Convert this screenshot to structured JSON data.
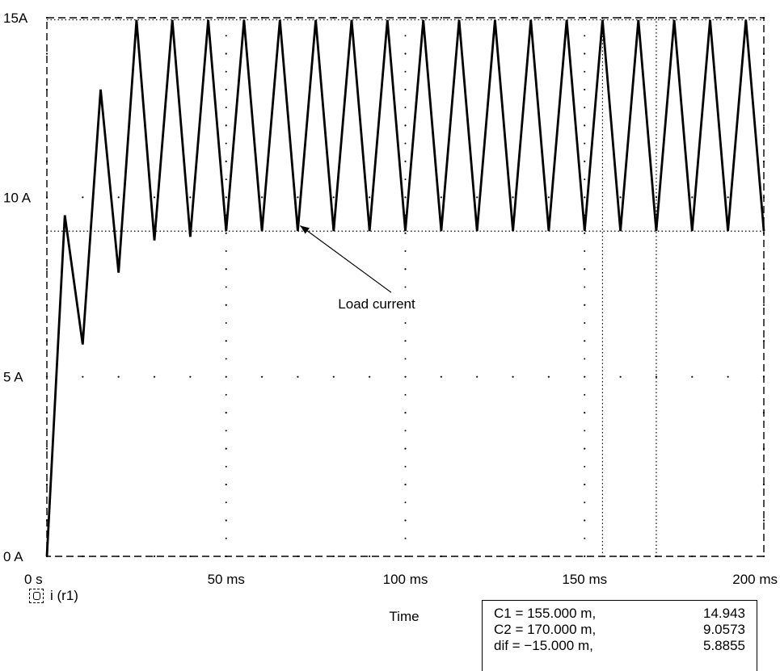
{
  "chart_data": {
    "type": "line",
    "xlabel": "Time",
    "ylabel": "",
    "xlim": [
      0,
      200
    ],
    "ylim": [
      0,
      15
    ],
    "x_ticks": [
      {
        "value": 0,
        "label": "0 s"
      },
      {
        "value": 50,
        "label": "50 ms"
      },
      {
        "value": 100,
        "label": "100 ms"
      },
      {
        "value": 150,
        "label": "150 ms"
      },
      {
        "value": 200,
        "label": "200 ms"
      }
    ],
    "y_ticks": [
      {
        "value": 0,
        "label": "0 A"
      },
      {
        "value": 5,
        "label": "5 A"
      },
      {
        "value": 10,
        "label": "10 A"
      },
      {
        "value": 15,
        "label": "15A"
      }
    ],
    "grid": "dotted",
    "series": [
      {
        "name": "i (r1)",
        "x_unit": "ms",
        "y_unit": "A",
        "points": [
          [
            0,
            0
          ],
          [
            5,
            9.5
          ],
          [
            10,
            5.9
          ],
          [
            15,
            13
          ],
          [
            20,
            7.9
          ],
          [
            25,
            14.94
          ],
          [
            30,
            8.8
          ],
          [
            35,
            14.94
          ],
          [
            40,
            8.9
          ],
          [
            45,
            14.94
          ],
          [
            50,
            9.06
          ],
          [
            55,
            14.94
          ],
          [
            60,
            9.06
          ],
          [
            65,
            14.94
          ],
          [
            70,
            9.06
          ],
          [
            75,
            14.94
          ],
          [
            80,
            9.06
          ],
          [
            85,
            14.94
          ],
          [
            90,
            9.06
          ],
          [
            95,
            14.94
          ],
          [
            100,
            9.06
          ],
          [
            105,
            14.94
          ],
          [
            110,
            9.06
          ],
          [
            115,
            14.94
          ],
          [
            120,
            9.06
          ],
          [
            125,
            14.94
          ],
          [
            130,
            9.06
          ],
          [
            135,
            14.94
          ],
          [
            140,
            9.06
          ],
          [
            145,
            14.94
          ],
          [
            150,
            9.06
          ],
          [
            155,
            14.94
          ],
          [
            160,
            9.06
          ],
          [
            165,
            14.94
          ],
          [
            170,
            9.06
          ],
          [
            175,
            14.94
          ],
          [
            180,
            9.06
          ],
          [
            185,
            14.94
          ],
          [
            190,
            9.06
          ],
          [
            195,
            14.94
          ],
          [
            200,
            9.06
          ]
        ]
      }
    ],
    "cursors": {
      "c1": {
        "x": 155,
        "y": 14.943
      },
      "c2": {
        "x": 170,
        "y": 9.0573
      }
    },
    "annotation": {
      "text": "Load current",
      "text_x": 92,
      "text_y": 6.9,
      "arrow_to": [
        70,
        9.3
      ]
    }
  },
  "legend": {
    "label": "i (r1)"
  },
  "cursor_readout": {
    "rows": [
      {
        "label": "C1 = 155.000 m,",
        "value": "14.943"
      },
      {
        "label": "C2 = 170.000 m,",
        "value": "9.0573"
      },
      {
        "label": "dif = −15.000 m,",
        "value": "5.8855"
      }
    ]
  }
}
